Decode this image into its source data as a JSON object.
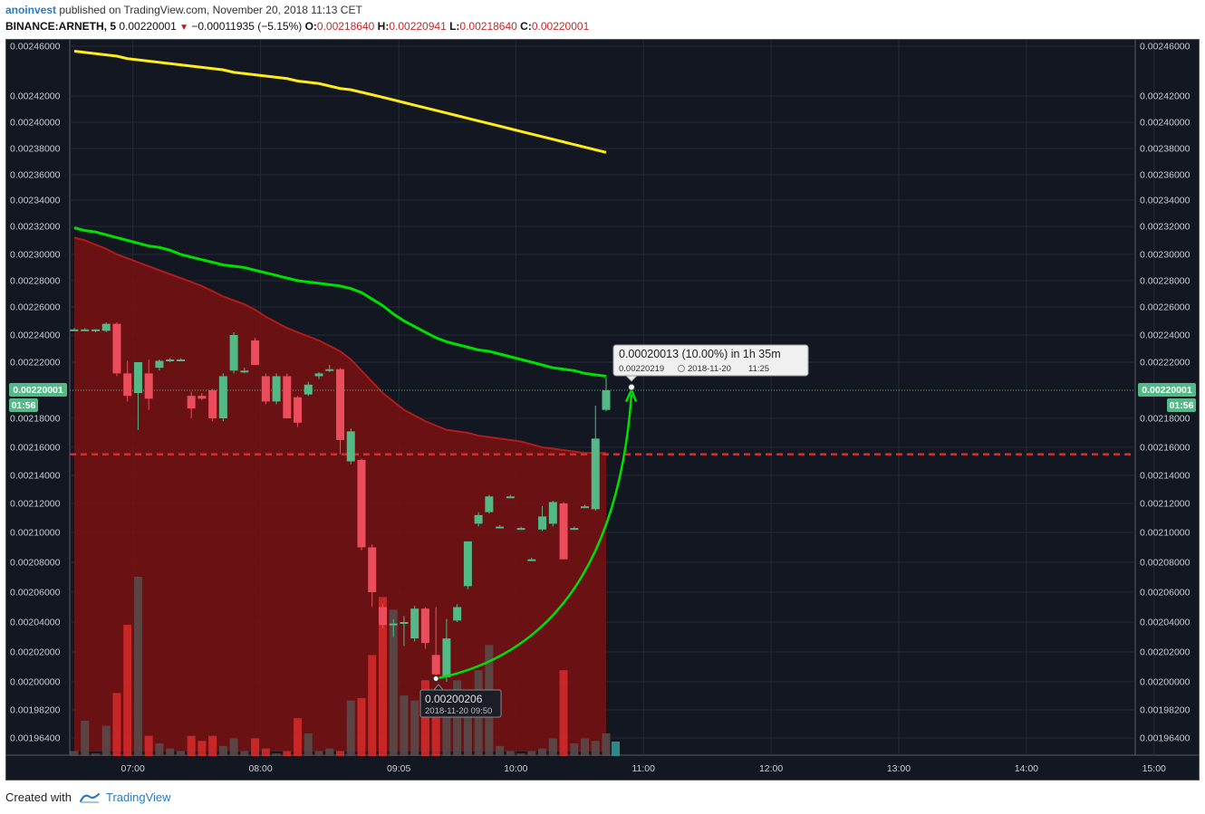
{
  "header": {
    "author": "anoinvest",
    "published": "published on TradingView.com, November 20, 2018 11:13 CET",
    "symbol": "BINANCE:ARNETH, 5",
    "last": "0.00220001",
    "change": "−0.00011935 (−5.15%)",
    "ohlc": [
      {
        "label": "O:",
        "value": "0.00218640"
      },
      {
        "label": "H:",
        "value": "0.00220941"
      },
      {
        "label": "L:",
        "value": "0.00218640"
      },
      {
        "label": "C:",
        "value": "0.00220001"
      }
    ]
  },
  "footer": {
    "created_with": "Created with",
    "brand": "TradingView"
  },
  "colors": {
    "up": "#53b987",
    "down": "#eb4d5c",
    "ema_green": "#00e000",
    "ema_yellow": "#ffec1a",
    "area": "#7a1010",
    "bg": "#131722"
  },
  "price_tag": {
    "value": "0.00220001",
    "countdown": "01:56"
  },
  "measure_label": {
    "line1": "0.00020013 (10.00%) in 1h 35m",
    "price": "0.00220219",
    "date": "2018-11-20",
    "time": "11:25"
  },
  "low_label": {
    "price": "0.00200206",
    "datetime": "2018-11-20 09:50"
  },
  "chart_data": {
    "type": "candlestick",
    "interval": "5",
    "y_ticks": [
      "0.00246000",
      "0.00242000",
      "0.00240000",
      "0.00238000",
      "0.00236000",
      "0.00234000",
      "0.00232000",
      "0.00230000",
      "0.00228000",
      "0.00226000",
      "0.00224000",
      "0.00222000",
      "0.00218000",
      "0.00216000",
      "0.00214000",
      "0.00212000",
      "0.00210000",
      "0.00208000",
      "0.00206000",
      "0.00204000",
      "0.00202000",
      "0.00200000",
      "0.00198200",
      "0.00196400"
    ],
    "x_ticks": [
      "07:00",
      "08:00",
      "09:05",
      "10:00",
      "11:00",
      "12:00",
      "13:00",
      "14:00",
      "15:00"
    ],
    "ylim": [
      0.00194,
      0.002465
    ],
    "dashed_level": 0.002155,
    "candles": [
      {
        "o": 0.002244,
        "h": 0.002245,
        "l": 0.002243,
        "c": 0.002244
      },
      {
        "o": 0.002244,
        "h": 0.002245,
        "l": 0.002243,
        "c": 0.002244
      },
      {
        "o": 0.002243,
        "h": 0.002244,
        "l": 0.002242,
        "c": 0.002244
      },
      {
        "o": 0.002243,
        "h": 0.002249,
        "l": 0.002242,
        "c": 0.002248
      },
      {
        "o": 0.002248,
        "h": 0.002249,
        "l": 0.00221,
        "c": 0.002212
      },
      {
        "o": 0.002212,
        "h": 0.002221,
        "l": 0.002192,
        "c": 0.002196
      },
      {
        "o": 0.002198,
        "h": 0.002216,
        "l": 0.002172,
        "c": 0.00222
      },
      {
        "o": 0.002212,
        "h": 0.002222,
        "l": 0.002186,
        "c": 0.002194
      },
      {
        "o": 0.002216,
        "h": 0.002222,
        "l": 0.002214,
        "c": 0.002221
      },
      {
        "o": 0.002221,
        "h": 0.002223,
        "l": 0.00222,
        "c": 0.002222
      },
      {
        "o": 0.002222,
        "h": 0.002223,
        "l": 0.002221,
        "c": 0.002222
      },
      {
        "o": 0.002196,
        "h": 0.002199,
        "l": 0.00218,
        "c": 0.002187
      },
      {
        "o": 0.002196,
        "h": 0.002198,
        "l": 0.002193,
        "c": 0.002194
      },
      {
        "o": 0.0022,
        "h": 0.002201,
        "l": 0.002178,
        "c": 0.00218
      },
      {
        "o": 0.00218,
        "h": 0.002212,
        "l": 0.002178,
        "c": 0.00221
      },
      {
        "o": 0.002214,
        "h": 0.002242,
        "l": 0.002212,
        "c": 0.00224
      },
      {
        "o": 0.002214,
        "h": 0.002216,
        "l": 0.002212,
        "c": 0.002214
      },
      {
        "o": 0.002236,
        "h": 0.002238,
        "l": 0.002218,
        "c": 0.002218
      },
      {
        "o": 0.00221,
        "h": 0.002212,
        "l": 0.00219,
        "c": 0.002192
      },
      {
        "o": 0.002192,
        "h": 0.002212,
        "l": 0.00219,
        "c": 0.00221
      },
      {
        "o": 0.00221,
        "h": 0.002212,
        "l": 0.00218,
        "c": 0.00218
      },
      {
        "o": 0.002195,
        "h": 0.002196,
        "l": 0.002174,
        "c": 0.002177
      },
      {
        "o": 0.002197,
        "h": 0.002206,
        "l": 0.002196,
        "c": 0.002204
      },
      {
        "o": 0.00221,
        "h": 0.002213,
        "l": 0.002208,
        "c": 0.002212
      },
      {
        "o": 0.002214,
        "h": 0.002218,
        "l": 0.002213,
        "c": 0.002215
      },
      {
        "o": 0.002215,
        "h": 0.002216,
        "l": 0.002155,
        "c": 0.002165
      },
      {
        "o": 0.00215,
        "h": 0.002173,
        "l": 0.002148,
        "c": 0.002171
      },
      {
        "o": 0.002151,
        "h": 0.002152,
        "l": 0.002088,
        "c": 0.00209
      },
      {
        "o": 0.00209,
        "h": 0.002092,
        "l": 0.00205,
        "c": 0.00206
      },
      {
        "o": 0.00205,
        "h": 0.002052,
        "l": 0.002036,
        "c": 0.002038
      },
      {
        "o": 0.002038,
        "h": 0.002042,
        "l": 0.00203,
        "c": 0.002039
      },
      {
        "o": 0.002039,
        "h": 0.002044,
        "l": 0.002024,
        "c": 0.00204
      },
      {
        "o": 0.002029,
        "h": 0.002051,
        "l": 0.002027,
        "c": 0.002049
      },
      {
        "o": 0.002049,
        "h": 0.00205,
        "l": 0.002022,
        "c": 0.002026
      },
      {
        "o": 0.002018,
        "h": 0.00205,
        "l": 0.002002,
        "c": 0.002005
      },
      {
        "o": 0.002003,
        "h": 0.002042,
        "l": 0.002,
        "c": 0.002029
      },
      {
        "o": 0.002041,
        "h": 0.002052,
        "l": 0.00204,
        "c": 0.00205
      },
      {
        "o": 0.002064,
        "h": 0.002094,
        "l": 0.002062,
        "c": 0.002094
      },
      {
        "o": 0.002106,
        "h": 0.002114,
        "l": 0.002104,
        "c": 0.002112
      },
      {
        "o": 0.002114,
        "h": 0.002126,
        "l": 0.002113,
        "c": 0.002125
      },
      {
        "o": 0.002104,
        "h": 0.002105,
        "l": 0.002103,
        "c": 0.002104
      },
      {
        "o": 0.002125,
        "h": 0.002126,
        "l": 0.002124,
        "c": 0.002125
      },
      {
        "o": 0.002103,
        "h": 0.002104,
        "l": 0.002102,
        "c": 0.002103
      },
      {
        "o": 0.002082,
        "h": 0.002083,
        "l": 0.002081,
        "c": 0.002082
      },
      {
        "o": 0.002102,
        "h": 0.002118,
        "l": 0.002101,
        "c": 0.002111
      },
      {
        "o": 0.002106,
        "h": 0.002122,
        "l": 0.002104,
        "c": 0.002121
      },
      {
        "o": 0.00212,
        "h": 0.002121,
        "l": 0.002082,
        "c": 0.002082
      },
      {
        "o": 0.002103,
        "h": 0.002104,
        "l": 0.002102,
        "c": 0.002103
      },
      {
        "o": 0.002118,
        "h": 0.002119,
        "l": 0.002117,
        "c": 0.002118
      },
      {
        "o": 0.002116,
        "h": 0.002189,
        "l": 0.002115,
        "c": 0.002166
      },
      {
        "o": 0.002186,
        "h": 0.002209,
        "l": 0.002185,
        "c": 0.0022
      }
    ],
    "volumes": [
      2,
      14,
      1,
      12,
      25,
      52,
      71,
      8,
      5,
      3,
      2,
      8,
      6,
      8,
      4,
      7,
      2,
      7,
      3,
      1,
      2,
      15,
      9,
      2,
      3,
      2,
      22,
      23,
      40,
      63,
      58,
      24,
      22,
      30,
      21,
      17,
      30,
      18,
      34,
      44,
      4,
      2,
      1,
      2,
      3,
      7,
      34,
      5,
      7,
      6,
      9
    ],
    "ema_yellow": [
      0.002456,
      0.002455,
      0.002454,
      0.002453,
      0.002452,
      0.00245,
      0.002449,
      0.002448,
      0.002447,
      0.002446,
      0.002445,
      0.002444,
      0.002443,
      0.002442,
      0.002441,
      0.002439,
      0.002438,
      0.002437,
      0.002436,
      0.002435,
      0.002434,
      0.002432,
      0.002431,
      0.00243,
      0.002428,
      0.002426,
      0.002425,
      0.002423,
      0.002421,
      0.002419,
      0.002417,
      0.002415,
      0.002413,
      0.002411,
      0.002409,
      0.002407,
      0.002405,
      0.002403,
      0.002401,
      0.002399,
      0.002397,
      0.002395,
      0.002393,
      0.002391,
      0.002389,
      0.002387,
      0.002385,
      0.002383,
      0.002381,
      0.002379,
      0.002377
    ],
    "ema_green": [
      0.002319,
      0.002317,
      0.002316,
      0.002314,
      0.002312,
      0.00231,
      0.002308,
      0.002306,
      0.002305,
      0.002303,
      0.0023,
      0.002298,
      0.002296,
      0.002294,
      0.002292,
      0.002291,
      0.00229,
      0.002288,
      0.002286,
      0.002284,
      0.002282,
      0.00228,
      0.002279,
      0.002278,
      0.002277,
      0.002276,
      0.002274,
      0.002271,
      0.002266,
      0.002261,
      0.002255,
      0.00225,
      0.002246,
      0.002242,
      0.002238,
      0.002235,
      0.002233,
      0.002231,
      0.002229,
      0.002228,
      0.002226,
      0.002224,
      0.002222,
      0.00222,
      0.002218,
      0.002216,
      0.002215,
      0.002214,
      0.002212,
      0.002211,
      0.00221
    ],
    "area_top": [
      0.002312,
      0.00231,
      0.002307,
      0.002304,
      0.0023,
      0.002297,
      0.002294,
      0.002291,
      0.002288,
      0.002285,
      0.002282,
      0.002279,
      0.002276,
      0.002272,
      0.002268,
      0.002265,
      0.002262,
      0.002258,
      0.002253,
      0.002249,
      0.002245,
      0.002242,
      0.002239,
      0.002236,
      0.002232,
      0.002228,
      0.002222,
      0.002214,
      0.002206,
      0.002198,
      0.002192,
      0.002186,
      0.002182,
      0.002178,
      0.002175,
      0.002172,
      0.002171,
      0.00217,
      0.002168,
      0.002167,
      0.002166,
      0.002165,
      0.002164,
      0.002162,
      0.00216,
      0.002159,
      0.002158,
      0.002157,
      0.002156,
      0.002156,
      0.002156
    ]
  }
}
